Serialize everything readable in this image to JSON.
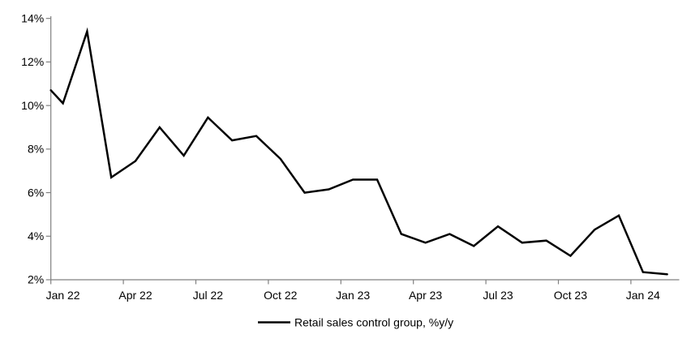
{
  "chart_data": {
    "type": "line",
    "title": "",
    "categories": [
      "Jan 22",
      "Feb 22",
      "Mar 22",
      "Apr 22",
      "May 22",
      "Jun 22",
      "Jul 22",
      "Aug 22",
      "Sep 22",
      "Oct 22",
      "Nov 22",
      "Dec 22",
      "Jan 23",
      "Feb 23",
      "Mar 23",
      "Apr 23",
      "May 23",
      "Jun 23",
      "Jul 23",
      "Aug 23",
      "Sep 23",
      "Oct 23",
      "Nov 23",
      "Dec 23",
      "Jan 24",
      "Feb 24"
    ],
    "series": [
      {
        "name": "Retail sales control group, %y/y",
        "color": "#000000",
        "values": [
          10.1,
          13.4,
          6.7,
          7.45,
          9.0,
          7.7,
          9.45,
          8.4,
          8.6,
          7.55,
          6.0,
          6.15,
          6.6,
          6.6,
          4.1,
          3.7,
          4.1,
          3.55,
          4.45,
          3.7,
          3.8,
          3.1,
          4.3,
          4.95,
          2.35,
          2.25
        ]
      }
    ],
    "left_edge_value": 10.7,
    "y_axis": {
      "min": 2,
      "max": 14,
      "tick_step": 2,
      "tick_labels": [
        "2%",
        "4%",
        "6%",
        "8%",
        "10%",
        "12%",
        "14%"
      ]
    },
    "x_axis": {
      "tick_every": 3,
      "labels": [
        "Jan 22",
        "Apr 22",
        "Jul 22",
        "Oct 22",
        "Jan 23",
        "Apr 23",
        "Jul 23",
        "Oct 23",
        "Jan 24"
      ]
    },
    "legend": {
      "position": "bottom",
      "entries": [
        {
          "label": "Retail sales control group, %y/y",
          "color": "#000000"
        }
      ]
    },
    "grid": false,
    "axis_color": "#808080",
    "background": "#ffffff"
  }
}
